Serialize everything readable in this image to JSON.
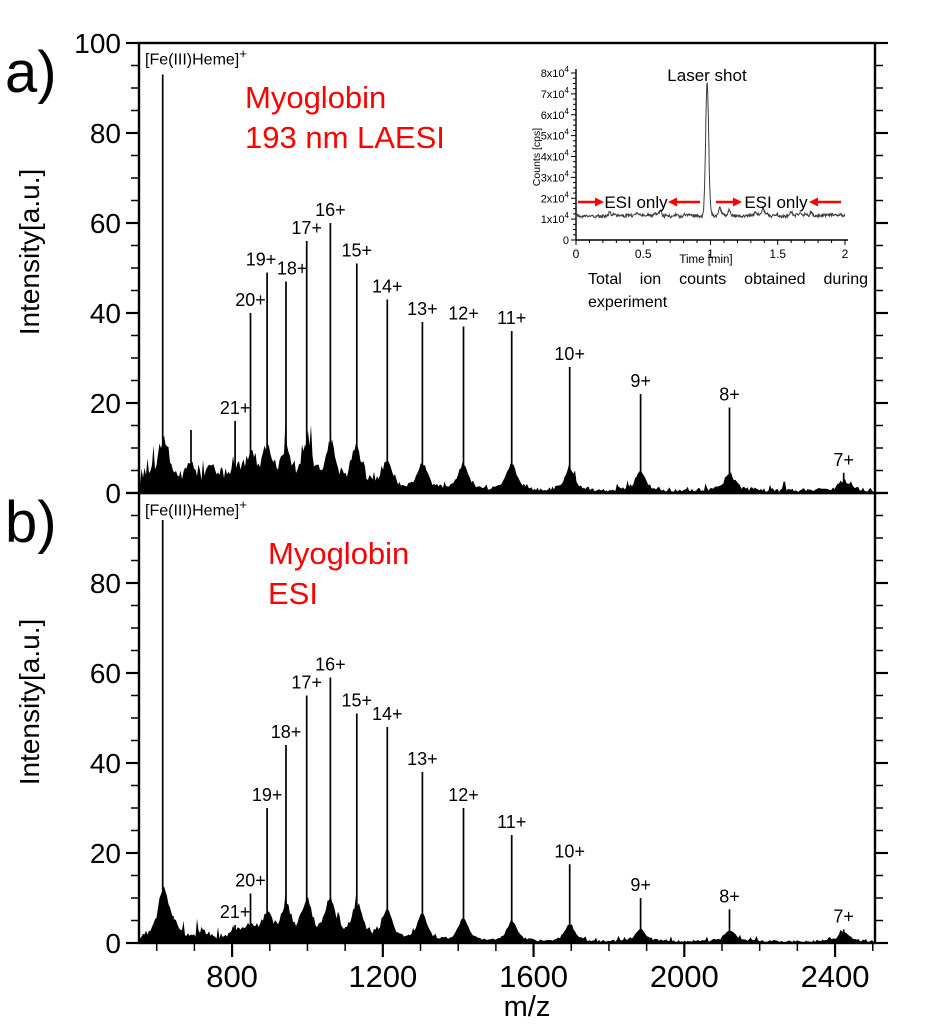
{
  "colors": {
    "annotation_red": "#fe0000",
    "axis_black": "#000000",
    "inset_trace_gray": "#3c3c3c"
  },
  "figure_tags": {
    "a": "a)",
    "b": "b)"
  },
  "chart_data": [
    {
      "id": "spectrum_a",
      "type": "line",
      "panel_tag": "a)",
      "annotation": "Myoglobin\n193 nm LAESI",
      "ylabel": "Intensity[a.u.]",
      "xlabel": "",
      "xlim": [
        553,
        2506
      ],
      "ylim": [
        0,
        100
      ],
      "xticks": [
        800,
        1200,
        1600,
        2000,
        2400
      ],
      "yticks_labeled": [
        0,
        20,
        40,
        60,
        80,
        100
      ],
      "x_minor_step": 100,
      "y_minor_step": 5,
      "heme_peak": {
        "label_base": "[Fe(III)Heme]",
        "label_sup": "+",
        "mz": 616,
        "intensity": 93
      },
      "peaks": [
        {
          "label": "21+",
          "mz": 808,
          "intensity": 16
        },
        {
          "label": "20+",
          "mz": 849,
          "intensity": 40
        },
        {
          "label": "19+",
          "mz": 893,
          "intensity": 49
        },
        {
          "label": "18+",
          "mz": 943,
          "intensity": 47
        },
        {
          "label": "17+",
          "mz": 998,
          "intensity": 56
        },
        {
          "label": "16+",
          "mz": 1061,
          "intensity": 60
        },
        {
          "label": "15+",
          "mz": 1131,
          "intensity": 51
        },
        {
          "label": "14+",
          "mz": 1212,
          "intensity": 43
        },
        {
          "label": "13+",
          "mz": 1305,
          "intensity": 38
        },
        {
          "label": "12+",
          "mz": 1414,
          "intensity": 37
        },
        {
          "label": "11+",
          "mz": 1542,
          "intensity": 36
        },
        {
          "label": "10+",
          "mz": 1696,
          "intensity": 28
        },
        {
          "label": "9+",
          "mz": 1884,
          "intensity": 22
        },
        {
          "label": "8+",
          "mz": 2120,
          "intensity": 19
        },
        {
          "label": "7+",
          "mz": 2423,
          "intensity": 4.5
        }
      ],
      "unlabeled_peaks": [
        [
          691,
          14
        ],
        [
          741,
          5
        ],
        [
          765,
          4
        ],
        [
          571,
          4
        ],
        [
          636,
          5
        ]
      ],
      "noise": {
        "base": 1.1,
        "boost": 2.3
      }
    },
    {
      "id": "spectrum_b",
      "type": "line",
      "panel_tag": "b)",
      "annotation": "Myoglobin\nESI",
      "ylabel": "Intensity[a.u.]",
      "xlabel": "m/z",
      "xlim": [
        553,
        2506
      ],
      "ylim": [
        0,
        100
      ],
      "xticks": [
        800,
        1200,
        1600,
        2000,
        2400
      ],
      "yticks_labeled": [
        0,
        20,
        40,
        60,
        80
      ],
      "x_minor_step": 100,
      "y_minor_step": 5,
      "heme_peak": {
        "label_base": "[Fe(III)Heme]",
        "label_sup": "+",
        "mz": 616,
        "intensity": 94
      },
      "peaks": [
        {
          "label": "21+",
          "mz": 808,
          "intensity": 4
        },
        {
          "label": "20+",
          "mz": 849,
          "intensity": 11
        },
        {
          "label": "19+",
          "mz": 893,
          "intensity": 30
        },
        {
          "label": "18+",
          "mz": 943,
          "intensity": 44
        },
        {
          "label": "17+",
          "mz": 998,
          "intensity": 55
        },
        {
          "label": "16+",
          "mz": 1061,
          "intensity": 59
        },
        {
          "label": "15+",
          "mz": 1131,
          "intensity": 51
        },
        {
          "label": "14+",
          "mz": 1212,
          "intensity": 48
        },
        {
          "label": "13+",
          "mz": 1305,
          "intensity": 38
        },
        {
          "label": "12+",
          "mz": 1414,
          "intensity": 30
        },
        {
          "label": "11+",
          "mz": 1542,
          "intensity": 24
        },
        {
          "label": "10+",
          "mz": 1696,
          "intensity": 17.5
        },
        {
          "label": "9+",
          "mz": 1884,
          "intensity": 10
        },
        {
          "label": "8+",
          "mz": 2120,
          "intensity": 7.5
        },
        {
          "label": "7+",
          "mz": 2423,
          "intensity": 3
        }
      ],
      "unlabeled_peaks": [
        [
          622,
          6
        ],
        [
          643,
          6
        ],
        [
          722,
          3
        ]
      ],
      "noise": {
        "base": 0.7,
        "boost": 1.0
      }
    },
    {
      "id": "inset_total_ion_chromatogram",
      "type": "line",
      "title": "Laser shot",
      "xlabel": "Time [min]",
      "ylabel": "Counts [cps]",
      "xlim": [
        0,
        2
      ],
      "ylim": [
        0,
        80000
      ],
      "xticks": [
        0,
        0.5,
        1,
        1.5,
        2
      ],
      "xtick_labels": [
        "0",
        "0.5",
        "1",
        "1.5",
        "2"
      ],
      "ytick_step": 10000,
      "ytick_mantissas": [
        "0",
        "1",
        "2",
        "3",
        "4",
        "5",
        "6",
        "7",
        "8"
      ],
      "ytick_suffix": "x10",
      "ytick_exponent": "4",
      "x_minor_step": 0.1,
      "y_minor_step": 2500,
      "baseline_counts": 12000,
      "laser_shot_peak": {
        "time_min": 0.975,
        "counts": 76000
      },
      "bumps": [
        [
          0.25,
          1500
        ],
        [
          0.45,
          1800
        ],
        [
          0.63,
          2800
        ],
        [
          1.07,
          3600
        ],
        [
          1.14,
          2900
        ],
        [
          1.33,
          1500
        ],
        [
          1.39,
          3000
        ],
        [
          1.6,
          1900
        ],
        [
          1.75,
          1600
        ]
      ],
      "esi_annotations": [
        {
          "text": "ESI only"
        },
        {
          "text": "ESI only"
        }
      ],
      "caption": "Total ion counts obtained during experiment"
    }
  ]
}
